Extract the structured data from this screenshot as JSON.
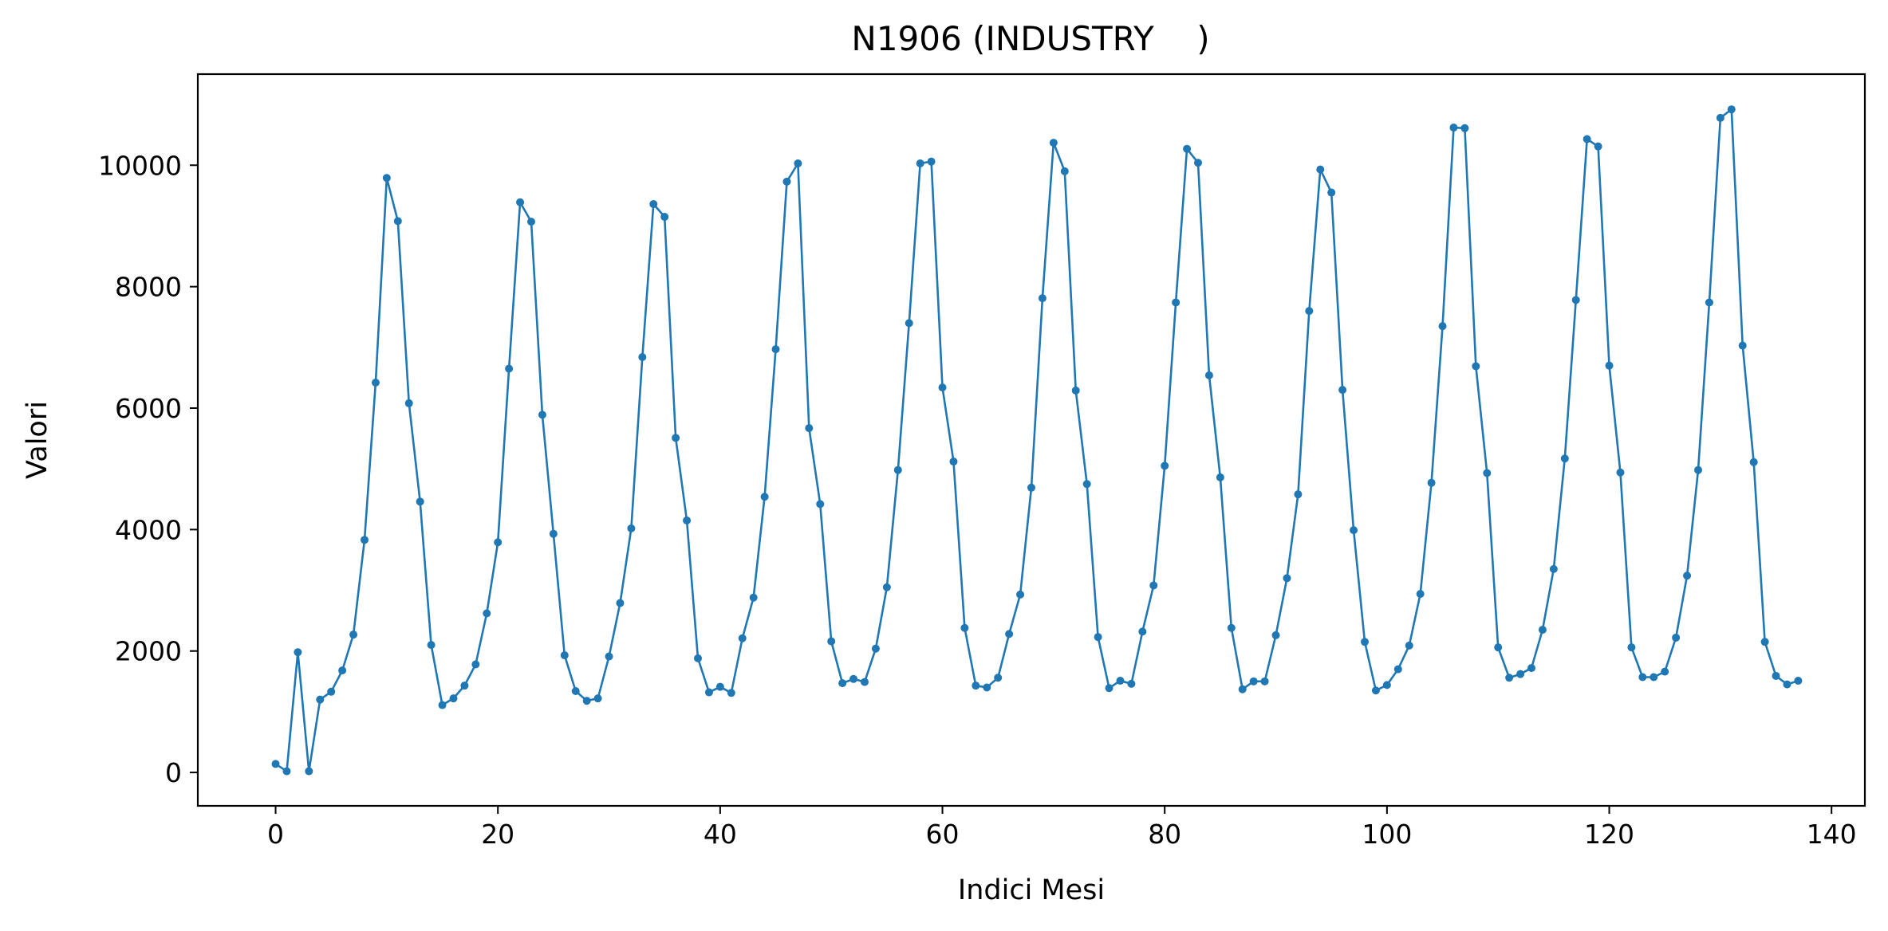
{
  "chart_data": {
    "type": "line",
    "title": "N1906 (INDUSTRY    )",
    "xlabel": "Indici Mesi",
    "ylabel": "Valori",
    "xlim": [
      -7,
      143
    ],
    "ylim": [
      -550,
      11500
    ],
    "xticks": [
      0,
      20,
      40,
      60,
      80,
      100,
      120,
      140
    ],
    "yticks": [
      0,
      2000,
      4000,
      6000,
      8000,
      10000
    ],
    "grid": false,
    "series": [
      {
        "name": "N1906",
        "color": "#1f77b4",
        "marker": "circle",
        "x": [
          0,
          1,
          2,
          3,
          4,
          5,
          6,
          7,
          8,
          9,
          10,
          11,
          12,
          13,
          14,
          15,
          16,
          17,
          18,
          19,
          20,
          21,
          22,
          23,
          24,
          25,
          26,
          27,
          28,
          29,
          30,
          31,
          32,
          33,
          34,
          35,
          36,
          37,
          38,
          39,
          40,
          41,
          42,
          43,
          44,
          45,
          46,
          47,
          48,
          49,
          50,
          51,
          52,
          53,
          54,
          55,
          56,
          57,
          58,
          59,
          60,
          61,
          62,
          63,
          64,
          65,
          66,
          67,
          68,
          69,
          70,
          71,
          72,
          73,
          74,
          75,
          76,
          77,
          78,
          79,
          80,
          81,
          82,
          83,
          84,
          85,
          86,
          87,
          88,
          89,
          90,
          91,
          92,
          93,
          94,
          95,
          96,
          97,
          98,
          99,
          100,
          101,
          102,
          103,
          104,
          105,
          106,
          107,
          108,
          109,
          110,
          111,
          112,
          113,
          114,
          115,
          116,
          117,
          118,
          119,
          120,
          121,
          122,
          123,
          124,
          125,
          126,
          127,
          128,
          129,
          130,
          131,
          132,
          133,
          134,
          135,
          136,
          137
        ],
        "values": [
          140,
          20,
          1980,
          20,
          1200,
          1330,
          1680,
          2270,
          3830,
          6420,
          9790,
          9080,
          6080,
          4460,
          2100,
          1110,
          1220,
          1430,
          1780,
          2620,
          3790,
          6650,
          9390,
          9070,
          5890,
          3930,
          1930,
          1340,
          1180,
          1220,
          1910,
          2790,
          4020,
          6840,
          9360,
          9150,
          5510,
          4150,
          1880,
          1320,
          1410,
          1310,
          2210,
          2880,
          4540,
          6970,
          9730,
          10030,
          5670,
          4420,
          2160,
          1470,
          1540,
          1490,
          2040,
          3050,
          4980,
          7400,
          10030,
          10060,
          6340,
          5120,
          2380,
          1430,
          1400,
          1560,
          2280,
          2930,
          4690,
          7810,
          10370,
          9900,
          6290,
          4750,
          2230,
          1390,
          1510,
          1460,
          2320,
          3080,
          5050,
          7740,
          10270,
          10040,
          6540,
          4860,
          2380,
          1370,
          1500,
          1500,
          2260,
          3200,
          4580,
          7600,
          9930,
          9550,
          6300,
          3990,
          2150,
          1350,
          1440,
          1700,
          2090,
          2940,
          4770,
          7350,
          10620,
          10610,
          6690,
          4930,
          2060,
          1560,
          1620,
          1720,
          2350,
          3350,
          5170,
          7780,
          10430,
          10310,
          6700,
          4940,
          2060,
          1570,
          1570,
          1660,
          2220,
          3240,
          4980,
          7740,
          10780,
          10920,
          7030,
          5110,
          2150,
          1590,
          1450,
          1510
        ]
      }
    ]
  }
}
